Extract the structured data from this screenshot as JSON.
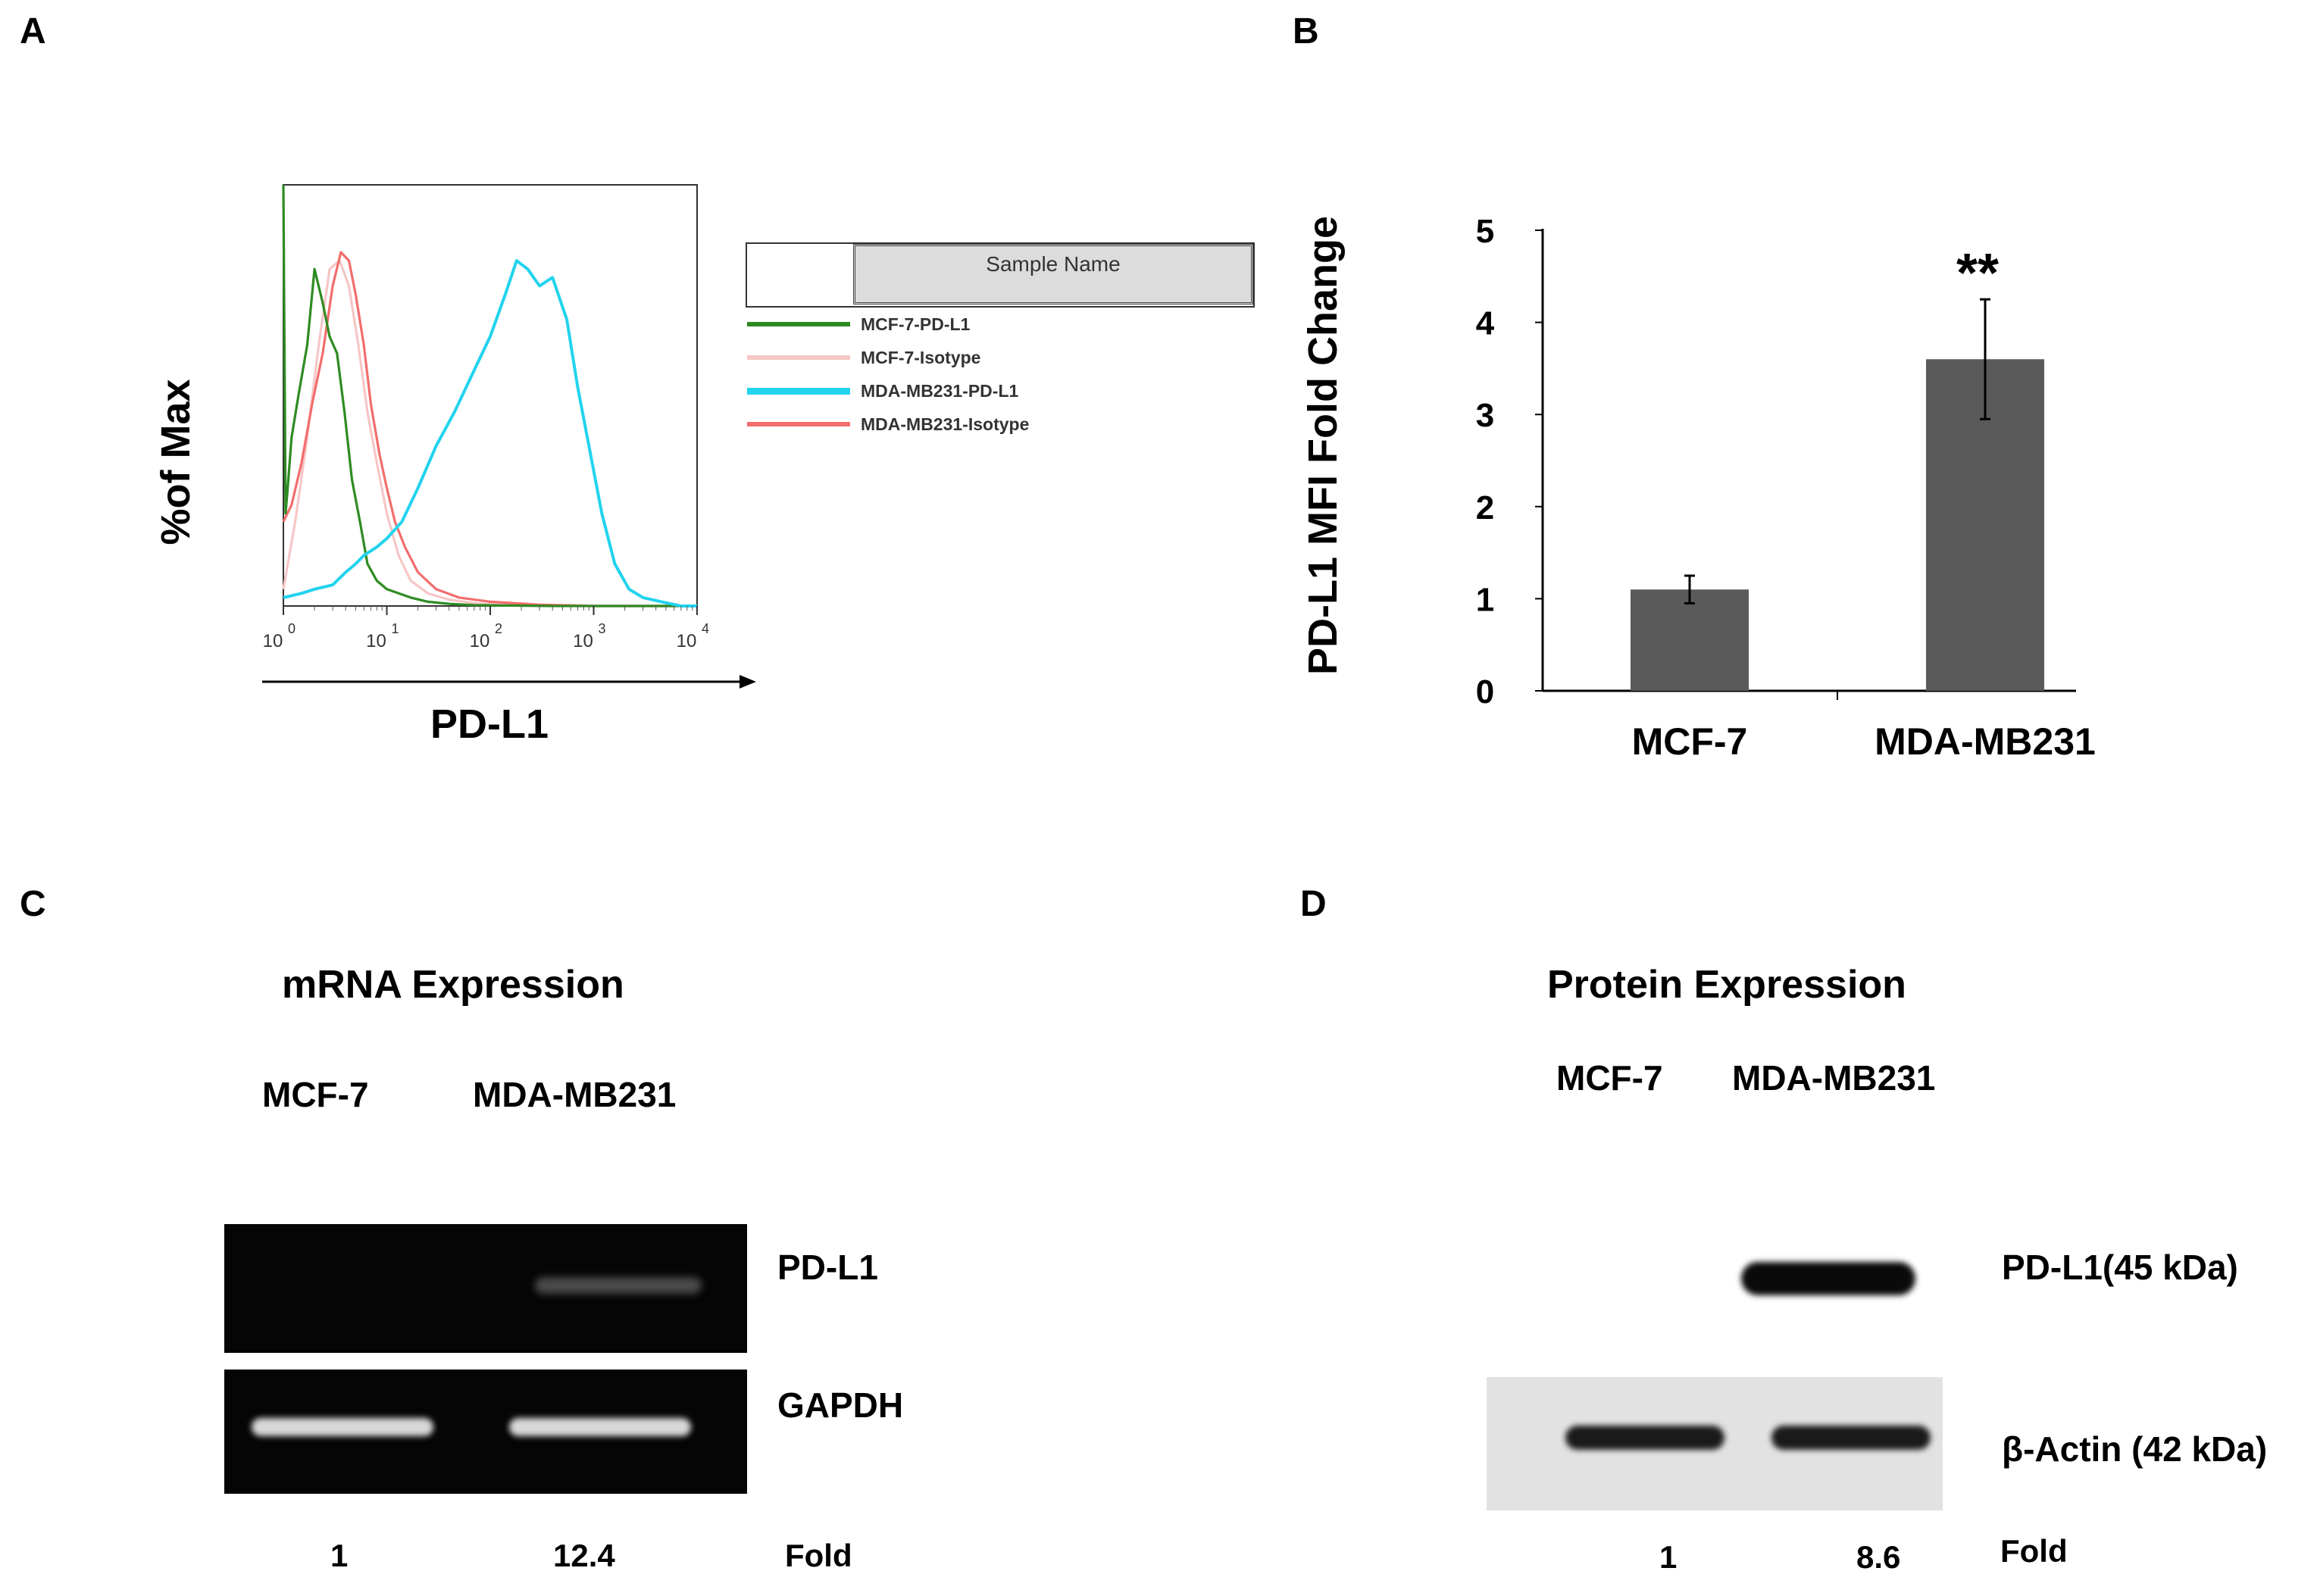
{
  "panels": {
    "A": {
      "letter": "A",
      "xlabel": "PD-L1",
      "ylabel": "%of Max",
      "tick_labels": [
        {
          "base": "10",
          "exp": "0"
        },
        {
          "base": "10",
          "exp": "1"
        },
        {
          "base": "10",
          "exp": "2"
        },
        {
          "base": "10",
          "exp": "3"
        },
        {
          "base": "10",
          "exp": "4"
        }
      ],
      "legend_header": "Sample Name",
      "legend": [
        {
          "label": "MCF-7-PD-L1",
          "color": "#2e8b22"
        },
        {
          "label": "MCF-7-Isotype",
          "color": "#f7c6c6"
        },
        {
          "label": "MDA-MB231-PD-L1",
          "color": "#22d3ee"
        },
        {
          "label": "MDA-MB231-Isotype",
          "color": "#f26d6d"
        }
      ]
    },
    "B": {
      "letter": "B",
      "ylabel": "PD-L1 MFI Fold Change",
      "significance": "**"
    },
    "C": {
      "letter": "C",
      "title": "mRNA Expression",
      "lanes": [
        "MCF-7",
        "MDA-MB231"
      ],
      "band_labels": [
        "PD-L1",
        "GAPDH"
      ],
      "fold_values": [
        "1",
        "12.4"
      ],
      "fold_label": "Fold"
    },
    "D": {
      "letter": "D",
      "title": "Protein Expression",
      "lanes": [
        "MCF-7",
        "MDA-MB231"
      ],
      "band_labels": [
        "PD-L1(45 kDa)",
        "β-Actin (42 kDa)"
      ],
      "fold_values": [
        "1",
        "8.6"
      ],
      "fold_label": "Fold"
    }
  },
  "chart_data": [
    {
      "type": "line",
      "panel": "A",
      "xlabel": "PD-L1",
      "ylabel": "%of Max",
      "x_scale": "log",
      "xlim": [
        1,
        10000
      ],
      "ylim": [
        0,
        100
      ],
      "x_ticks": [
        1,
        10,
        100,
        1000,
        10000
      ],
      "series": [
        {
          "name": "MCF-7-PD-L1",
          "color": "#2e8b22",
          "x": [
            1,
            1.05,
            1.1,
            1.2,
            1.4,
            1.7,
            2,
            2.4,
            2.8,
            3.3,
            3.9,
            4.6,
            5.5,
            6.5,
            8,
            10,
            13,
            17,
            25,
            40,
            70,
            150,
            400,
            1000,
            3000,
            10000
          ],
          "y": [
            100,
            22,
            28,
            40,
            50,
            62,
            80,
            72,
            64,
            60,
            46,
            30,
            20,
            10,
            6,
            4,
            3,
            2,
            1,
            0.5,
            0.2,
            0.1,
            0,
            0,
            0,
            0
          ]
        },
        {
          "name": "MCF-7-Isotype",
          "color": "#f7c6c6",
          "x": [
            1,
            1.3,
            1.7,
            2.2,
            2.8,
            3.5,
            4.3,
            5.3,
            6.5,
            8,
            10,
            13,
            17,
            25,
            40,
            80,
            200,
            1000,
            10000
          ],
          "y": [
            4,
            20,
            40,
            62,
            80,
            82,
            76,
            62,
            46,
            34,
            22,
            12,
            6,
            3,
            1.5,
            0.5,
            0.2,
            0,
            0
          ]
        },
        {
          "name": "MDA-MB231-PD-L1",
          "color": "#22d3ee",
          "x": [
            1,
            1.5,
            2,
            3,
            4,
            5,
            6,
            8,
            10,
            14,
            20,
            30,
            45,
            70,
            100,
            140,
            180,
            230,
            300,
            400,
            550,
            700,
            900,
            1200,
            1600,
            2200,
            3000,
            4500,
            7000,
            10000
          ],
          "y": [
            2,
            3,
            4,
            5,
            8,
            10,
            12,
            14,
            16,
            20,
            28,
            38,
            46,
            56,
            64,
            74,
            82,
            80,
            76,
            78,
            68,
            52,
            38,
            22,
            10,
            4,
            2,
            1,
            0,
            0
          ]
        },
        {
          "name": "MDA-MB231-Isotype",
          "color": "#f26d6d",
          "x": [
            1,
            1.2,
            1.5,
            1.9,
            2.4,
            3,
            3.6,
            4.3,
            5,
            6,
            7,
            8.5,
            10,
            12,
            15,
            20,
            30,
            50,
            100,
            300,
            1000,
            10000
          ],
          "y": [
            20,
            24,
            34,
            48,
            60,
            76,
            84,
            82,
            74,
            62,
            48,
            36,
            28,
            20,
            14,
            8,
            4,
            2,
            1,
            0.3,
            0,
            0
          ]
        }
      ]
    },
    {
      "type": "bar",
      "panel": "B",
      "categories": [
        "MCF-7",
        "MDA-MB231"
      ],
      "values": [
        1.1,
        3.6
      ],
      "error": [
        0.15,
        0.65
      ],
      "ylabel": "PD-L1 MFI Fold Change",
      "ylim": [
        0,
        5
      ],
      "y_ticks": [
        0,
        1,
        2,
        3,
        4,
        5
      ],
      "bar_color": "#5a5a5a",
      "annotations": [
        "**"
      ]
    }
  ]
}
